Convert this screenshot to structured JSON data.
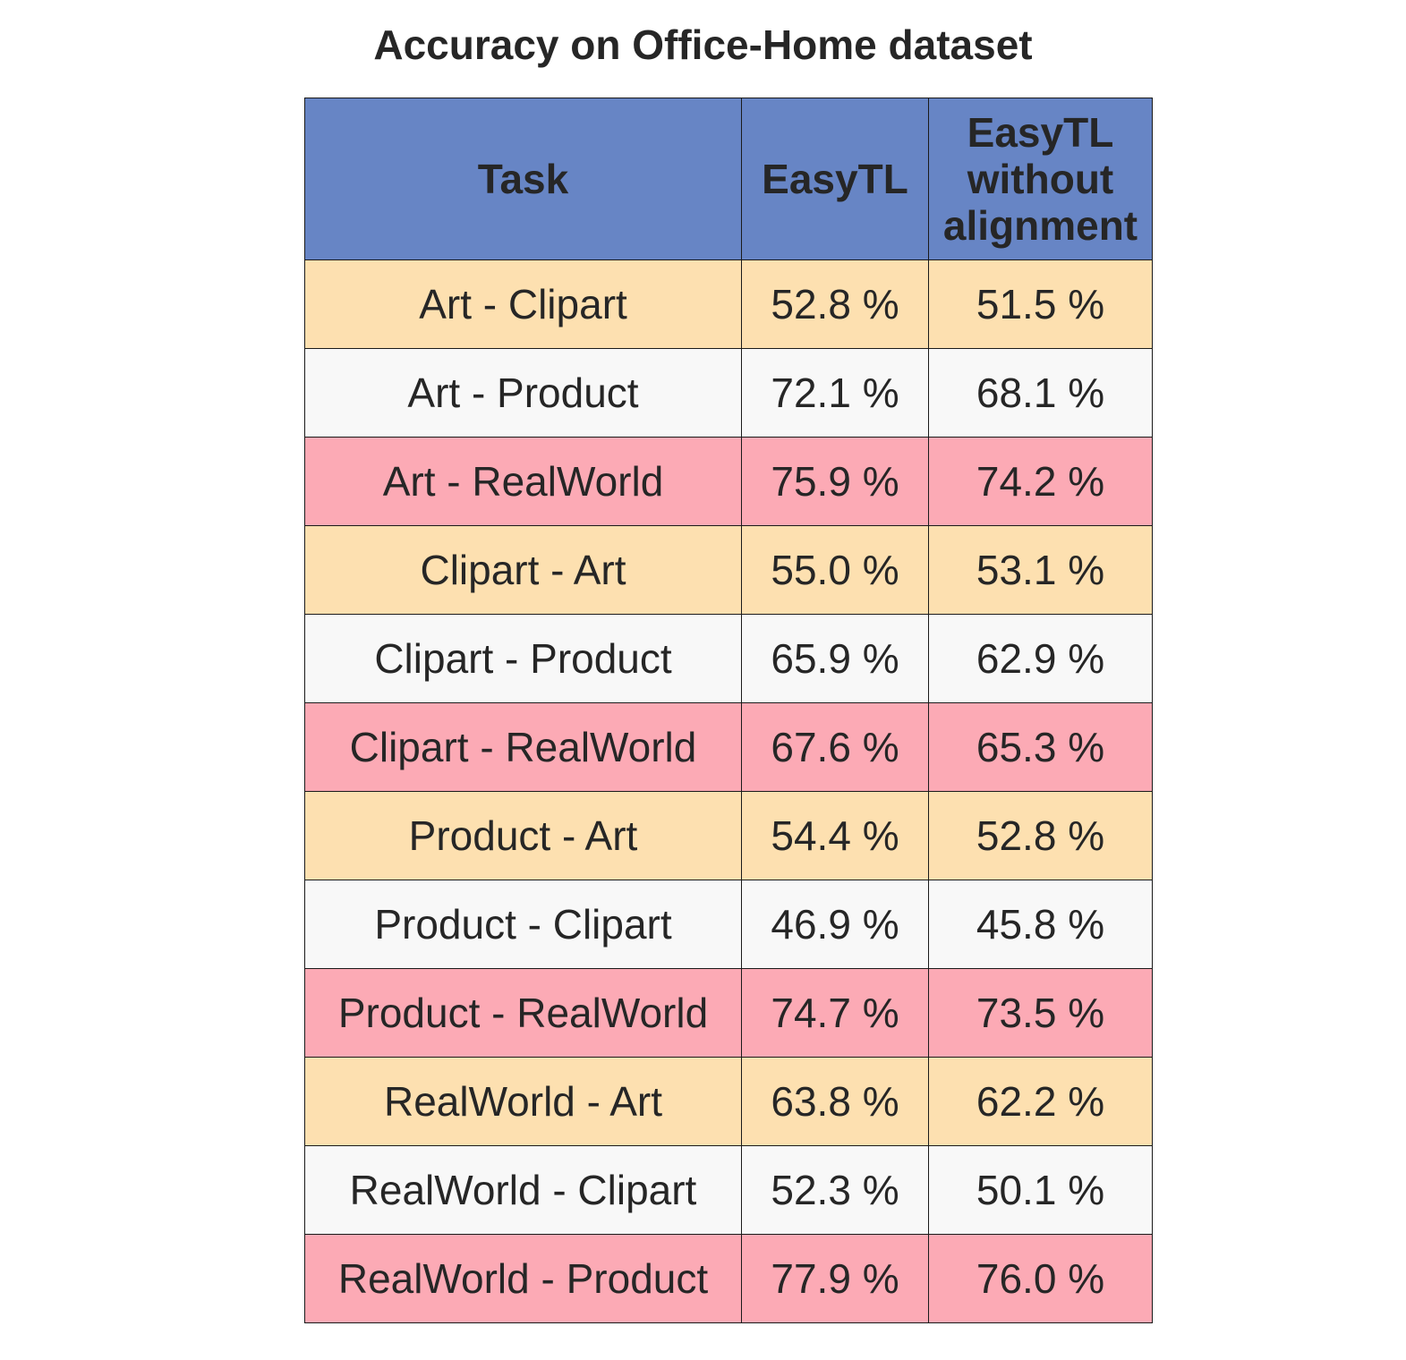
{
  "chart_data": {
    "type": "table",
    "title": "Accuracy on Office-Home dataset",
    "columns": [
      "Task",
      "EasyTL",
      "EasyTL without alignment"
    ],
    "rows": [
      [
        "Art - Clipart",
        "52.8 %",
        "51.5 %"
      ],
      [
        "Art - Product",
        "72.1 %",
        "68.1 %"
      ],
      [
        "Art - RealWorld",
        "75.9 %",
        "74.2 %"
      ],
      [
        "Clipart - Art",
        "55.0 %",
        "53.1 %"
      ],
      [
        "Clipart - Product",
        "65.9 %",
        "62.9 %"
      ],
      [
        "Clipart - RealWorld",
        "67.6 %",
        "65.3 %"
      ],
      [
        "Product - Art",
        "54.4 %",
        "52.8 %"
      ],
      [
        "Product - Clipart",
        "46.9 %",
        "45.8 %"
      ],
      [
        "Product - RealWorld",
        "74.7 %",
        "73.5 %"
      ],
      [
        "RealWorld - Art",
        "63.8 %",
        "62.2 %"
      ],
      [
        "RealWorld - Clipart",
        "52.3 %",
        "50.1 %"
      ],
      [
        "RealWorld - Product",
        "77.9 %",
        "76.0 %"
      ]
    ],
    "colors": {
      "header": "#6785c5",
      "row_cycle": [
        "#fde0b0",
        "#f8f8f8",
        "#fcaab5"
      ],
      "border": "#1a1a1a",
      "text": "#262626"
    }
  }
}
